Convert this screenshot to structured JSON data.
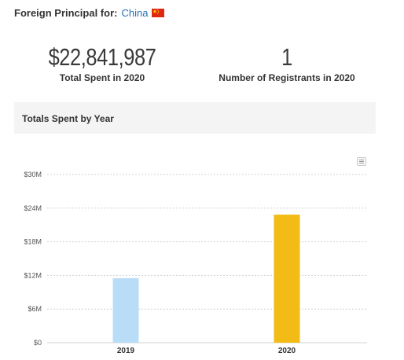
{
  "header": {
    "label": "Foreign Principal for:",
    "country": "China"
  },
  "stats": [
    {
      "value": "$22,841,987",
      "label": "Total Spent in 2020"
    },
    {
      "value": "1",
      "label": "Number of Registrants in 2020"
    }
  ],
  "section": {
    "title": "Totals Spent by Year"
  },
  "colors": {
    "bar_2019": "#b9dcf7",
    "bar_2020": "#f2bb15",
    "grid": "#d0d0d0",
    "link": "#2a6fb5"
  },
  "chart_data": {
    "type": "bar",
    "categories": [
      "2019",
      "2020"
    ],
    "values": [
      11500000,
      22841987
    ],
    "yticks": [
      "$0",
      "$6M",
      "$12M",
      "$18M",
      "$24M",
      "$30M"
    ],
    "ylim": [
      0,
      30000000
    ],
    "grid": true,
    "bar_colors": [
      "#b9dcf7",
      "#f2bb15"
    ]
  }
}
